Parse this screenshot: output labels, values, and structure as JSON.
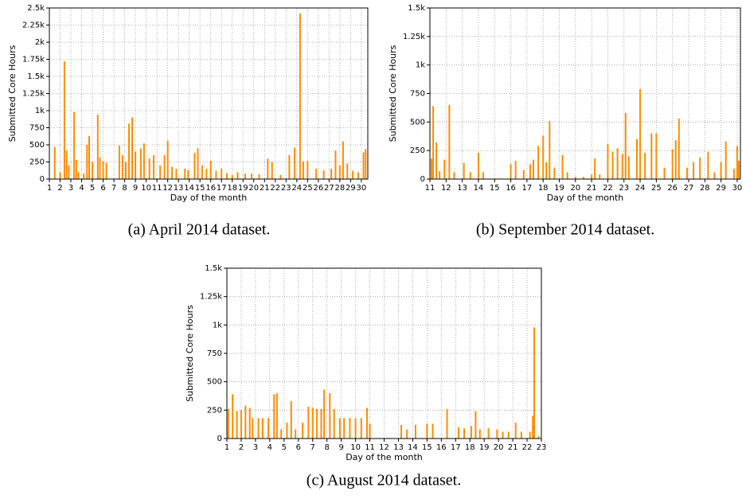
{
  "chart_data": [
    {
      "type": "bar",
      "caption": "(a) April 2014 dataset.",
      "xlabel": "Day of the month",
      "ylabel": "Submitted Core Hours",
      "color": "#ff8c00",
      "grid": true,
      "x": [
        1.5,
        2.0,
        2.4,
        2.6,
        2.8,
        3.3,
        3.5,
        3.7,
        4.2,
        4.5,
        4.7,
        5.0,
        5.5,
        5.7,
        6.0,
        6.3,
        7.5,
        7.8,
        8.1,
        8.4,
        8.7,
        9.0,
        9.5,
        9.8,
        10.3,
        10.7,
        11.3,
        11.7,
        12.0,
        12.4,
        12.8,
        13.6,
        13.9,
        14.5,
        14.8,
        15.2,
        15.6,
        16.0,
        16.5,
        17.0,
        17.5,
        18.0,
        18.5,
        19.2,
        19.8,
        20.5,
        21.3,
        21.7,
        22.5,
        23.3,
        23.8,
        24.3,
        24.6,
        25.0,
        25.8,
        26.5,
        27.2,
        27.6,
        28.0,
        28.3,
        28.7,
        29.2,
        29.7,
        30.2,
        30.4
      ],
      "values": [
        470,
        100,
        1720,
        420,
        200,
        980,
        280,
        100,
        80,
        500,
        630,
        250,
        940,
        320,
        260,
        240,
        490,
        350,
        250,
        810,
        900,
        400,
        450,
        520,
        300,
        350,
        200,
        350,
        560,
        180,
        150,
        150,
        130,
        380,
        450,
        200,
        150,
        270,
        120,
        150,
        90,
        60,
        100,
        80,
        80,
        70,
        300,
        250,
        60,
        350,
        460,
        2420,
        260,
        270,
        150,
        130,
        150,
        420,
        200,
        550,
        230,
        120,
        100,
        390,
        440
      ],
      "xlim": [
        1,
        30.6
      ],
      "xticks": [
        1,
        2,
        3,
        4,
        5,
        6,
        7,
        8,
        9,
        10,
        11,
        12,
        13,
        14,
        15,
        16,
        17,
        18,
        19,
        20,
        21,
        22,
        23,
        24,
        25,
        26,
        27,
        28,
        29,
        30
      ],
      "ylim": [
        0,
        2500
      ],
      "yticks": [
        0,
        250,
        500,
        750,
        {
          "value": 1000,
          "label": "1k"
        },
        {
          "value": 1250,
          "label": "1.25k"
        },
        {
          "value": 1500,
          "label": "1.5k"
        },
        {
          "value": 1750,
          "label": "1.75k"
        },
        {
          "value": 2000,
          "label": "2k"
        },
        {
          "value": 2250,
          "label": "2.25k"
        },
        {
          "value": 2500,
          "label": "2.5k"
        }
      ]
    },
    {
      "type": "bar",
      "caption": "(b) September 2014 dataset.",
      "xlabel": "Day of the month",
      "ylabel": "Submitted Core Hours",
      "color": "#ff8c00",
      "grid": true,
      "x": [
        11.1,
        11.2,
        11.4,
        11.6,
        11.9,
        12.2,
        12.5,
        13.1,
        13.5,
        14.0,
        14.3,
        16.0,
        16.3,
        16.8,
        17.2,
        17.4,
        17.7,
        18.0,
        18.2,
        18.4,
        18.7,
        19.2,
        19.5,
        20.0,
        20.5,
        21.0,
        21.2,
        21.5,
        22.0,
        22.3,
        22.6,
        22.9,
        23.1,
        23.3,
        23.8,
        24.0,
        24.3,
        24.7,
        25.0,
        25.5,
        26.0,
        26.2,
        26.4,
        26.9,
        27.3,
        27.7,
        28.2,
        28.6,
        29.0,
        29.3,
        29.8,
        30.0,
        30.1
      ],
      "values": [
        180,
        640,
        320,
        70,
        170,
        650,
        60,
        140,
        60,
        230,
        60,
        130,
        160,
        80,
        130,
        170,
        290,
        380,
        150,
        510,
        100,
        210,
        60,
        20,
        20,
        40,
        180,
        40,
        310,
        240,
        270,
        220,
        580,
        200,
        350,
        790,
        230,
        400,
        400,
        100,
        260,
        340,
        530,
        100,
        150,
        190,
        240,
        60,
        150,
        330,
        90,
        290,
        160
      ],
      "xlim": [
        11,
        30.2
      ],
      "xticks": [
        11,
        12,
        13,
        14,
        15,
        16,
        17,
        18,
        19,
        20,
        21,
        22,
        23,
        24,
        25,
        26,
        27,
        28,
        29,
        30
      ],
      "ylim": [
        0,
        1500
      ],
      "yticks": [
        0,
        250,
        500,
        750,
        {
          "value": 1000,
          "label": "1k"
        },
        {
          "value": 1250,
          "label": "1.25k"
        },
        {
          "value": 1500,
          "label": "1.5k"
        }
      ]
    },
    {
      "type": "bar",
      "caption": "(c) August 2014 dataset.",
      "xlabel": "Day of the month",
      "ylabel": "Submitted Core Hours",
      "color": "#ff8c00",
      "grid": true,
      "x": [
        1.1,
        1.4,
        1.7,
        2.0,
        2.3,
        2.6,
        2.8,
        3.2,
        3.5,
        3.9,
        4.3,
        4.5,
        4.8,
        5.2,
        5.5,
        5.8,
        6.3,
        6.7,
        7.0,
        7.3,
        7.6,
        7.8,
        8.2,
        8.5,
        8.9,
        9.2,
        9.6,
        10.0,
        10.4,
        10.8,
        11.0,
        13.2,
        13.6,
        14.2,
        15.0,
        15.4,
        16.4,
        17.2,
        17.6,
        18.1,
        18.4,
        18.7,
        19.3,
        19.9,
        20.3,
        20.7,
        21.2,
        21.6,
        22.2,
        22.4,
        22.5,
        22.8
      ],
      "values": [
        260,
        390,
        240,
        250,
        290,
        270,
        180,
        180,
        180,
        180,
        390,
        400,
        80,
        140,
        330,
        80,
        140,
        280,
        270,
        260,
        260,
        430,
        400,
        260,
        180,
        180,
        180,
        180,
        180,
        270,
        130,
        120,
        80,
        120,
        130,
        130,
        260,
        100,
        90,
        110,
        240,
        80,
        90,
        80,
        60,
        60,
        140,
        60,
        60,
        200,
        980,
        20
      ],
      "xlim": [
        1,
        23
      ],
      "xticks": [
        1,
        2,
        3,
        4,
        5,
        6,
        7,
        8,
        9,
        10,
        11,
        12,
        13,
        14,
        15,
        16,
        17,
        18,
        19,
        20,
        21,
        22,
        23
      ],
      "ylim": [
        0,
        1500
      ],
      "yticks": [
        0,
        250,
        500,
        750,
        {
          "value": 1000,
          "label": "1k"
        },
        {
          "value": 1250,
          "label": "1.25k"
        },
        {
          "value": 1500,
          "label": "1.5k"
        }
      ]
    }
  ]
}
